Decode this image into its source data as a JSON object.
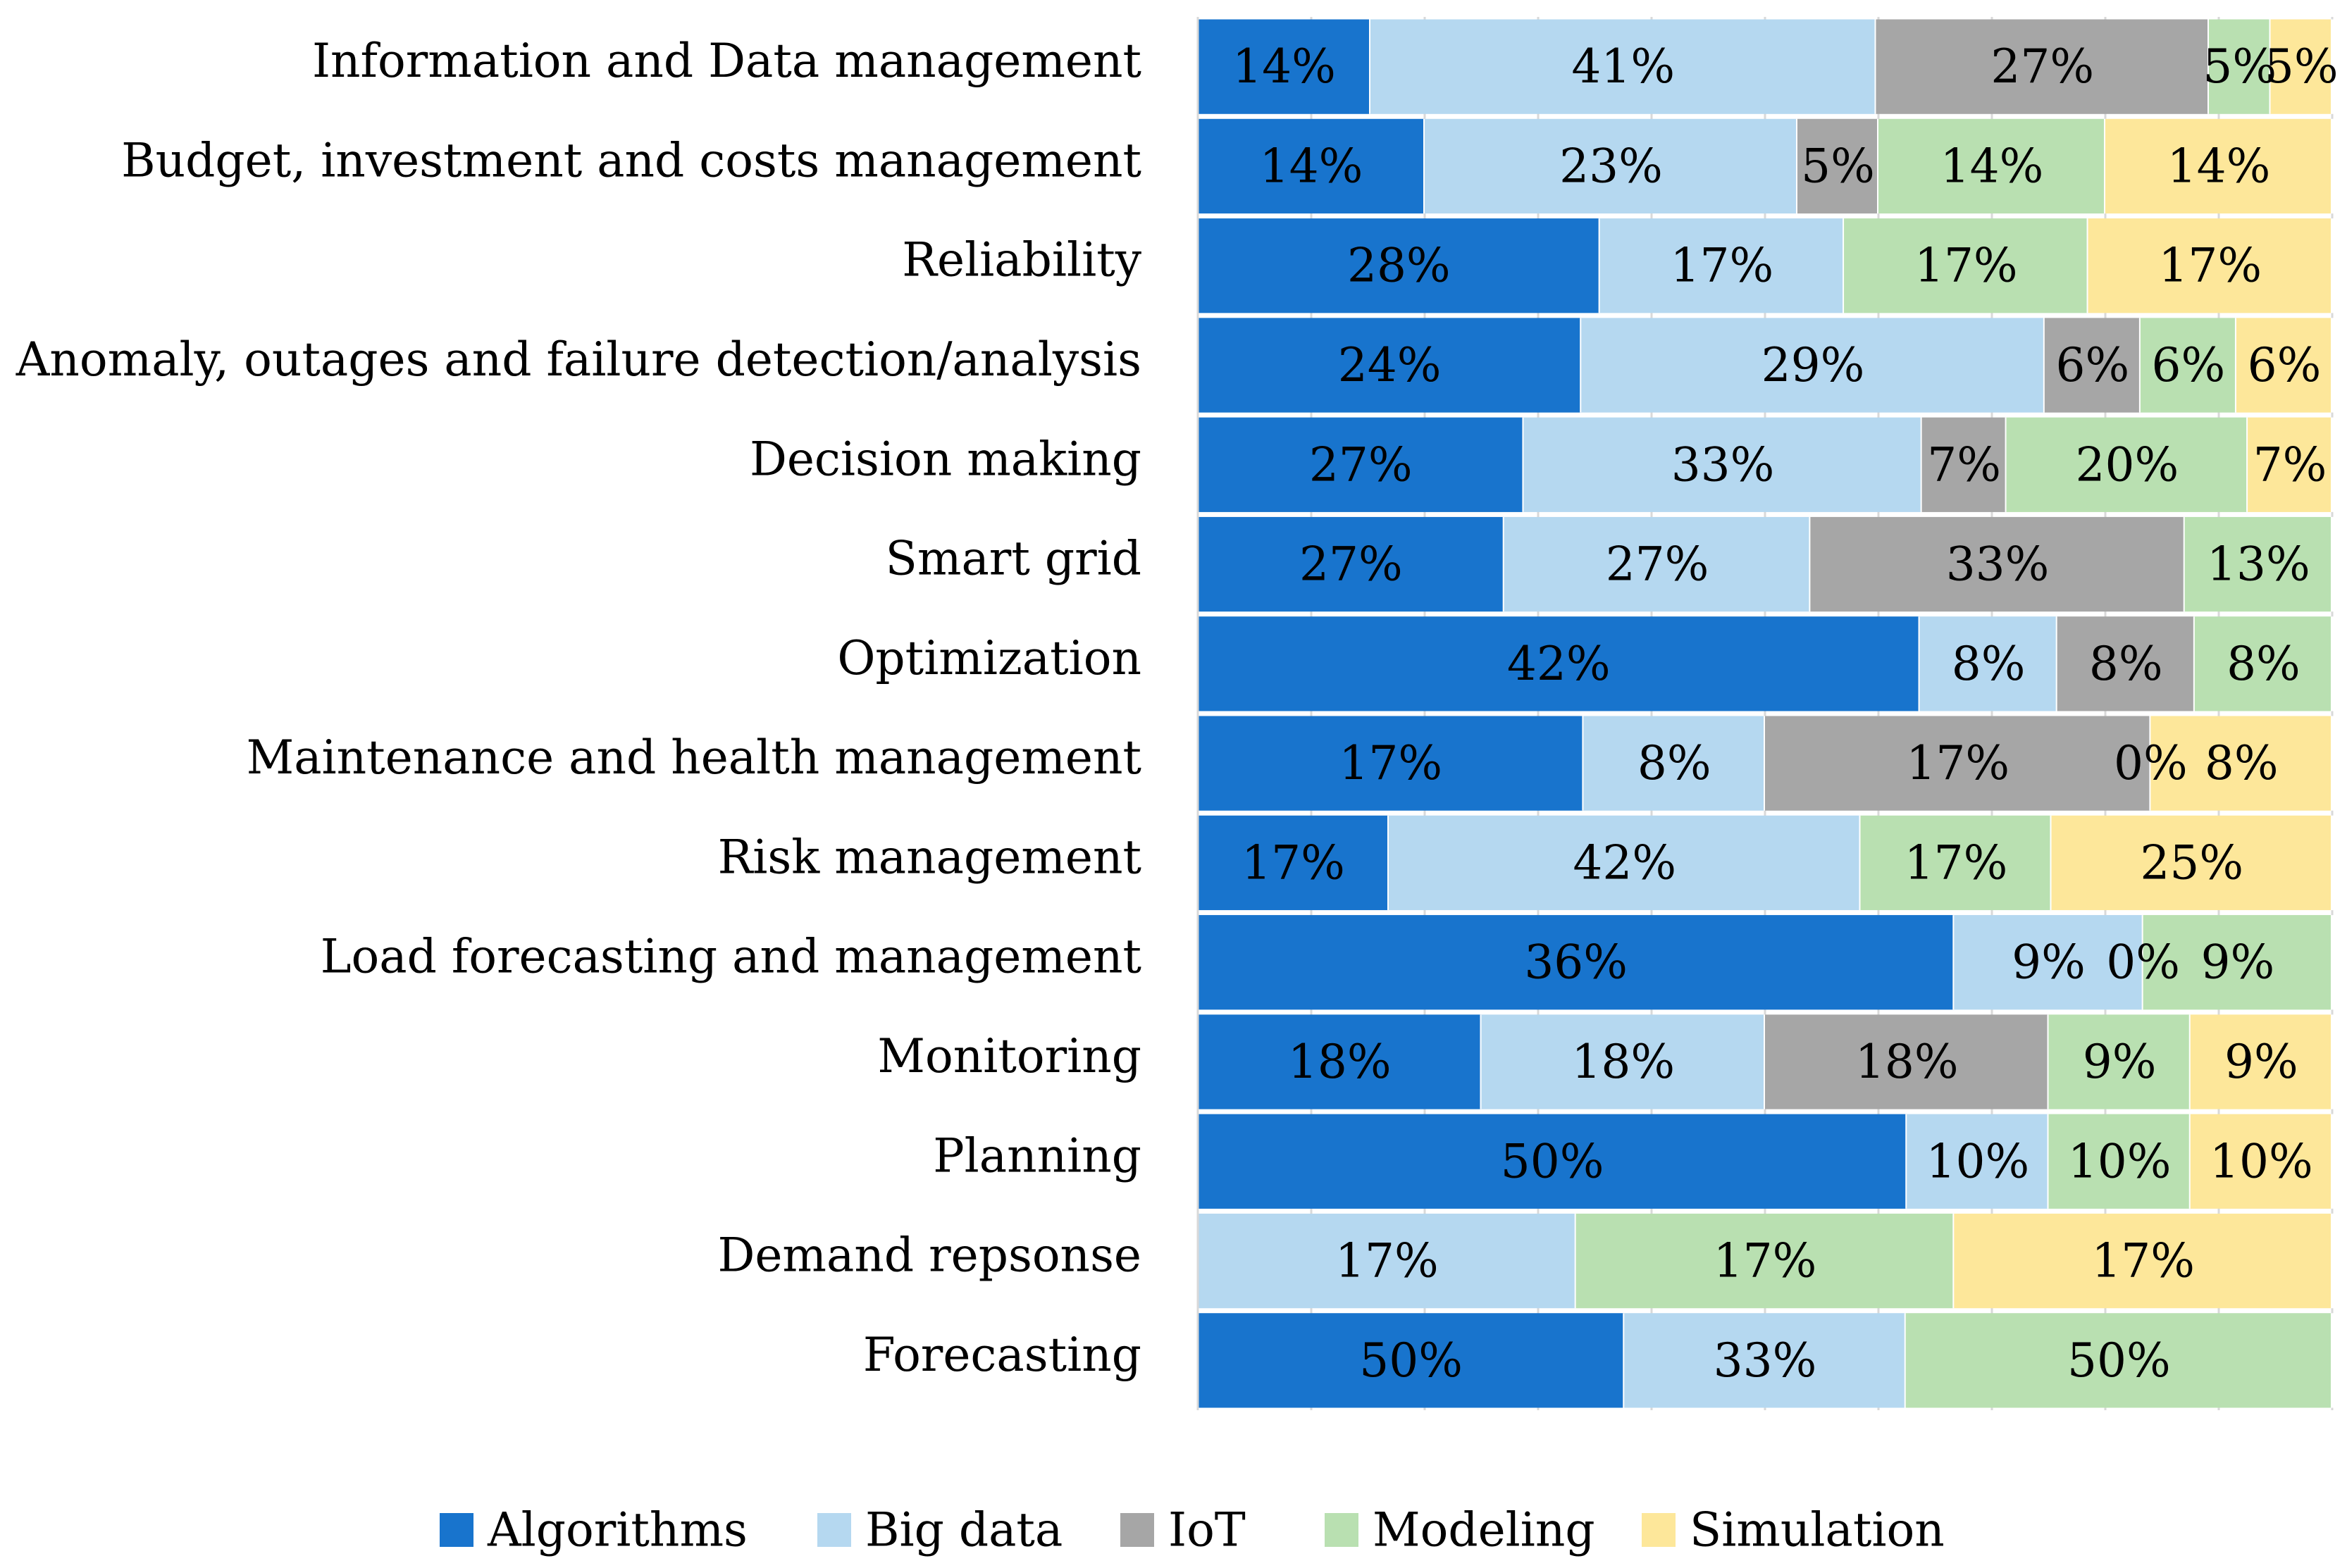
{
  "chart_data": {
    "type": "bar",
    "orientation": "horizontal",
    "stacked": true,
    "normalized": true,
    "categories": [
      "Information and Data management",
      "Budget, investment and costs management",
      "Reliability",
      "Anomaly, outages and failure detection/analysis",
      "Decision making",
      "Smart grid",
      "Optimization",
      "Maintenance and health management",
      "Risk management",
      "Load forecasting and management",
      "Monitoring",
      "Planning",
      "Demand repsonse",
      "Forecasting"
    ],
    "series": [
      {
        "name": "Algorithms",
        "color": "#1874CD",
        "values": [
          14,
          14,
          28,
          24,
          27,
          27,
          42,
          17,
          17,
          36,
          18,
          50,
          0,
          50
        ],
        "labels": [
          "14%",
          "14%",
          "28%",
          "24%",
          "27%",
          "27%",
          "42%",
          "17%",
          "17%",
          "36%",
          "18%",
          "50%",
          "",
          "50%"
        ]
      },
      {
        "name": "Big data",
        "color": "#B5D8F0",
        "values": [
          41,
          23,
          17,
          29,
          33,
          27,
          8,
          8,
          42,
          9,
          18,
          10,
          17,
          33
        ],
        "labels": [
          "41%",
          "23%",
          "17%",
          "29%",
          "33%",
          "27%",
          "8%",
          "8%",
          "42%",
          "9%",
          "18%",
          "10%",
          "17%",
          "33%"
        ]
      },
      {
        "name": "IoT",
        "color": "#A6A6A6",
        "values": [
          27,
          5,
          0,
          6,
          7,
          33,
          8,
          17,
          0,
          0,
          18,
          0,
          0,
          0
        ],
        "labels": [
          "27%",
          "5%",
          "",
          "6%",
          "7%",
          "33%",
          "8%",
          "17%",
          "",
          "0%",
          "18%",
          "",
          "",
          ""
        ]
      },
      {
        "name": "Modeling",
        "color": "#B9E0B1",
        "values": [
          5,
          14,
          17,
          6,
          20,
          13,
          8,
          0,
          17,
          9,
          9,
          10,
          17,
          50
        ],
        "labels": [
          "5%",
          "14%",
          "17%",
          "6%",
          "20%",
          "13%",
          "8%",
          "0%",
          "17%",
          "9%",
          "9%",
          "10%",
          "17%",
          "50%"
        ]
      },
      {
        "name": "Simulation",
        "color": "#FDE79A",
        "values": [
          5,
          14,
          17,
          6,
          7,
          0,
          0,
          8,
          25,
          0,
          9,
          10,
          17,
          0
        ],
        "labels": [
          "5%",
          "14%",
          "17%",
          "6%",
          "7%",
          "",
          "",
          "8%",
          "25%",
          "",
          "9%",
          "10%",
          "17%",
          ""
        ]
      }
    ],
    "xlim": [
      0,
      100
    ],
    "grid": true,
    "legend_position": "bottom"
  }
}
